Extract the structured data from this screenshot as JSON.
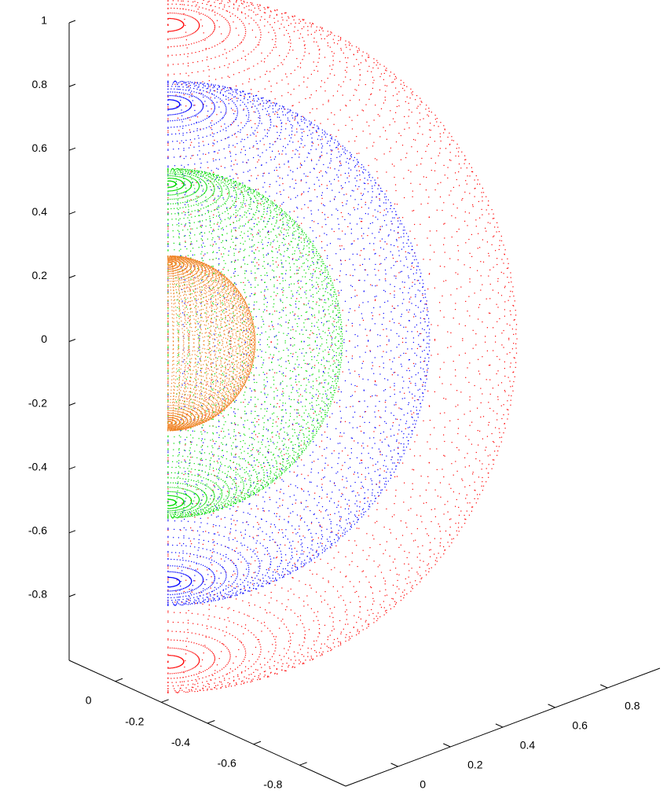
{
  "chart_data": {
    "type": "scatter3d",
    "series": [
      {
        "color": "#ff0000",
        "radius": 1
      },
      {
        "color": "#0000ff",
        "radius": 0.75
      },
      {
        "color": "#00dd00",
        "radius": 0.5
      },
      {
        "color": "#f08020",
        "radius": 0.25
      }
    ],
    "xlim": [
      0.2,
      -1
    ],
    "xticks": [
      0,
      -0.2,
      -0.4,
      -0.6,
      -0.8
    ],
    "ylim": [
      -0.2,
      1
    ],
    "yticks": [
      0,
      0.2,
      0.4,
      0.6,
      0.8
    ],
    "zlim": [
      -1,
      1
    ],
    "zticks": [
      -0.8,
      -0.6,
      -0.4,
      -0.2,
      0,
      0.2,
      0.4,
      0.6,
      0.8,
      1
    ]
  }
}
